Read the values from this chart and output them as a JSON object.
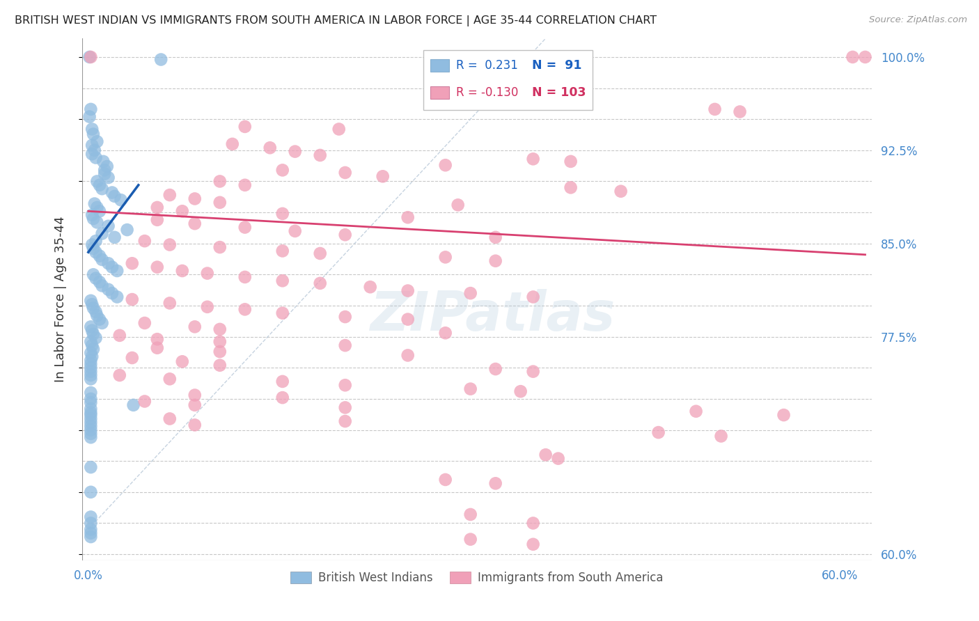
{
  "title": "BRITISH WEST INDIAN VS IMMIGRANTS FROM SOUTH AMERICA IN LABOR FORCE | AGE 35-44 CORRELATION CHART",
  "source": "Source: ZipAtlas.com",
  "ylabel": "In Labor Force | Age 35-44",
  "xmin": -0.005,
  "xmax": 0.625,
  "ymin": 0.595,
  "ymax": 1.015,
  "yticks": [
    0.6,
    0.625,
    0.65,
    0.675,
    0.7,
    0.725,
    0.75,
    0.775,
    0.8,
    0.825,
    0.85,
    0.875,
    0.9,
    0.925,
    0.95,
    0.975,
    1.0
  ],
  "ytick_labels": [
    "60.0%",
    "",
    "",
    "",
    "",
    "",
    "",
    "77.5%",
    "",
    "",
    "85.0%",
    "",
    "",
    "92.5%",
    "",
    "",
    "100.0%"
  ],
  "xticks": [
    0.0,
    0.1,
    0.2,
    0.3,
    0.4,
    0.5,
    0.6
  ],
  "xtick_labels": [
    "0.0%",
    "",
    "",
    "",
    "",
    "",
    "60.0%"
  ],
  "grid_color": "#c8c8c8",
  "background_color": "#ffffff",
  "blue_color": "#90bce0",
  "pink_color": "#f0a0b8",
  "blue_line_color": "#1a5cb0",
  "pink_line_color": "#d84070",
  "diag_line_color": "#b8c8d8",
  "legend_R_blue": "0.231",
  "legend_N_blue": "91",
  "legend_R_pink": "-0.130",
  "legend_N_pink": "103",
  "title_color": "#222222",
  "axis_label_color": "#333333",
  "right_tick_color": "#4488cc",
  "bottom_tick_color": "#4488cc",
  "watermark": "ZIPatlas",
  "blue_trend_x0": 0.0,
  "blue_trend_y0": 0.843,
  "blue_trend_x1": 0.04,
  "blue_trend_y1": 0.897,
  "pink_trend_x0": 0.0,
  "pink_trend_y0": 0.876,
  "pink_trend_x1": 0.62,
  "pink_trend_y1": 0.841,
  "blue_points": [
    [
      0.001,
      1.0
    ],
    [
      0.058,
      0.998
    ],
    [
      0.002,
      0.958
    ],
    [
      0.001,
      0.952
    ],
    [
      0.003,
      0.942
    ],
    [
      0.004,
      0.938
    ],
    [
      0.007,
      0.932
    ],
    [
      0.003,
      0.929
    ],
    [
      0.005,
      0.925
    ],
    [
      0.003,
      0.922
    ],
    [
      0.006,
      0.919
    ],
    [
      0.012,
      0.916
    ],
    [
      0.015,
      0.912
    ],
    [
      0.013,
      0.909
    ],
    [
      0.013,
      0.906
    ],
    [
      0.016,
      0.903
    ],
    [
      0.007,
      0.9
    ],
    [
      0.009,
      0.897
    ],
    [
      0.011,
      0.894
    ],
    [
      0.019,
      0.891
    ],
    [
      0.021,
      0.888
    ],
    [
      0.026,
      0.885
    ],
    [
      0.005,
      0.882
    ],
    [
      0.007,
      0.879
    ],
    [
      0.009,
      0.876
    ],
    [
      0.003,
      0.873
    ],
    [
      0.004,
      0.87
    ],
    [
      0.007,
      0.867
    ],
    [
      0.016,
      0.864
    ],
    [
      0.031,
      0.861
    ],
    [
      0.011,
      0.858
    ],
    [
      0.021,
      0.855
    ],
    [
      0.006,
      0.852
    ],
    [
      0.003,
      0.849
    ],
    [
      0.004,
      0.846
    ],
    [
      0.006,
      0.843
    ],
    [
      0.009,
      0.84
    ],
    [
      0.011,
      0.837
    ],
    [
      0.016,
      0.834
    ],
    [
      0.019,
      0.831
    ],
    [
      0.023,
      0.828
    ],
    [
      0.004,
      0.825
    ],
    [
      0.006,
      0.822
    ],
    [
      0.009,
      0.819
    ],
    [
      0.011,
      0.816
    ],
    [
      0.016,
      0.813
    ],
    [
      0.019,
      0.81
    ],
    [
      0.023,
      0.807
    ],
    [
      0.002,
      0.804
    ],
    [
      0.003,
      0.801
    ],
    [
      0.004,
      0.798
    ],
    [
      0.006,
      0.795
    ],
    [
      0.007,
      0.792
    ],
    [
      0.009,
      0.789
    ],
    [
      0.011,
      0.786
    ],
    [
      0.002,
      0.783
    ],
    [
      0.003,
      0.78
    ],
    [
      0.004,
      0.777
    ],
    [
      0.006,
      0.774
    ],
    [
      0.002,
      0.771
    ],
    [
      0.003,
      0.768
    ],
    [
      0.004,
      0.765
    ],
    [
      0.002,
      0.762
    ],
    [
      0.003,
      0.759
    ],
    [
      0.002,
      0.756
    ],
    [
      0.002,
      0.753
    ],
    [
      0.002,
      0.75
    ],
    [
      0.002,
      0.747
    ],
    [
      0.002,
      0.744
    ],
    [
      0.002,
      0.741
    ],
    [
      0.002,
      0.73
    ],
    [
      0.002,
      0.725
    ],
    [
      0.002,
      0.722
    ],
    [
      0.036,
      0.72
    ],
    [
      0.002,
      0.717
    ],
    [
      0.002,
      0.714
    ],
    [
      0.002,
      0.712
    ],
    [
      0.002,
      0.709
    ],
    [
      0.002,
      0.706
    ],
    [
      0.002,
      0.703
    ],
    [
      0.002,
      0.7
    ],
    [
      0.002,
      0.697
    ],
    [
      0.002,
      0.694
    ],
    [
      0.002,
      0.67
    ],
    [
      0.002,
      0.65
    ],
    [
      0.002,
      0.63
    ],
    [
      0.002,
      0.625
    ],
    [
      0.002,
      0.62
    ],
    [
      0.002,
      0.617
    ],
    [
      0.002,
      0.614
    ]
  ],
  "pink_points": [
    [
      0.002,
      1.0
    ],
    [
      0.38,
      1.0
    ],
    [
      0.61,
      1.0
    ],
    [
      0.62,
      1.0
    ],
    [
      0.3,
      0.97
    ],
    [
      0.5,
      0.958
    ],
    [
      0.52,
      0.956
    ],
    [
      0.125,
      0.944
    ],
    [
      0.2,
      0.942
    ],
    [
      0.115,
      0.93
    ],
    [
      0.145,
      0.927
    ],
    [
      0.165,
      0.924
    ],
    [
      0.185,
      0.921
    ],
    [
      0.355,
      0.918
    ],
    [
      0.385,
      0.916
    ],
    [
      0.285,
      0.913
    ],
    [
      0.155,
      0.909
    ],
    [
      0.205,
      0.907
    ],
    [
      0.235,
      0.904
    ],
    [
      0.105,
      0.9
    ],
    [
      0.125,
      0.897
    ],
    [
      0.385,
      0.895
    ],
    [
      0.425,
      0.892
    ],
    [
      0.065,
      0.889
    ],
    [
      0.085,
      0.886
    ],
    [
      0.105,
      0.883
    ],
    [
      0.295,
      0.881
    ],
    [
      0.055,
      0.879
    ],
    [
      0.075,
      0.876
    ],
    [
      0.155,
      0.874
    ],
    [
      0.255,
      0.871
    ],
    [
      0.055,
      0.869
    ],
    [
      0.085,
      0.866
    ],
    [
      0.125,
      0.863
    ],
    [
      0.165,
      0.86
    ],
    [
      0.205,
      0.857
    ],
    [
      0.325,
      0.855
    ],
    [
      0.045,
      0.852
    ],
    [
      0.065,
      0.849
    ],
    [
      0.105,
      0.847
    ],
    [
      0.155,
      0.844
    ],
    [
      0.185,
      0.842
    ],
    [
      0.285,
      0.839
    ],
    [
      0.325,
      0.836
    ],
    [
      0.035,
      0.834
    ],
    [
      0.055,
      0.831
    ],
    [
      0.075,
      0.828
    ],
    [
      0.095,
      0.826
    ],
    [
      0.125,
      0.823
    ],
    [
      0.155,
      0.82
    ],
    [
      0.185,
      0.818
    ],
    [
      0.225,
      0.815
    ],
    [
      0.255,
      0.812
    ],
    [
      0.305,
      0.81
    ],
    [
      0.355,
      0.807
    ],
    [
      0.035,
      0.805
    ],
    [
      0.065,
      0.802
    ],
    [
      0.095,
      0.799
    ],
    [
      0.125,
      0.797
    ],
    [
      0.155,
      0.794
    ],
    [
      0.205,
      0.791
    ],
    [
      0.255,
      0.789
    ],
    [
      0.045,
      0.786
    ],
    [
      0.085,
      0.783
    ],
    [
      0.105,
      0.781
    ],
    [
      0.285,
      0.778
    ],
    [
      0.025,
      0.776
    ],
    [
      0.055,
      0.773
    ],
    [
      0.105,
      0.771
    ],
    [
      0.205,
      0.768
    ],
    [
      0.055,
      0.766
    ],
    [
      0.105,
      0.763
    ],
    [
      0.255,
      0.76
    ],
    [
      0.035,
      0.758
    ],
    [
      0.075,
      0.755
    ],
    [
      0.105,
      0.752
    ],
    [
      0.325,
      0.749
    ],
    [
      0.355,
      0.747
    ],
    [
      0.025,
      0.744
    ],
    [
      0.065,
      0.741
    ],
    [
      0.155,
      0.739
    ],
    [
      0.205,
      0.736
    ],
    [
      0.305,
      0.733
    ],
    [
      0.345,
      0.731
    ],
    [
      0.085,
      0.728
    ],
    [
      0.155,
      0.726
    ],
    [
      0.045,
      0.723
    ],
    [
      0.085,
      0.72
    ],
    [
      0.205,
      0.718
    ],
    [
      0.485,
      0.715
    ],
    [
      0.555,
      0.712
    ],
    [
      0.065,
      0.709
    ],
    [
      0.205,
      0.707
    ],
    [
      0.085,
      0.704
    ],
    [
      0.455,
      0.698
    ],
    [
      0.505,
      0.695
    ],
    [
      0.365,
      0.68
    ],
    [
      0.375,
      0.677
    ],
    [
      0.285,
      0.66
    ],
    [
      0.325,
      0.657
    ],
    [
      0.305,
      0.632
    ],
    [
      0.355,
      0.625
    ],
    [
      0.305,
      0.612
    ],
    [
      0.355,
      0.608
    ]
  ]
}
